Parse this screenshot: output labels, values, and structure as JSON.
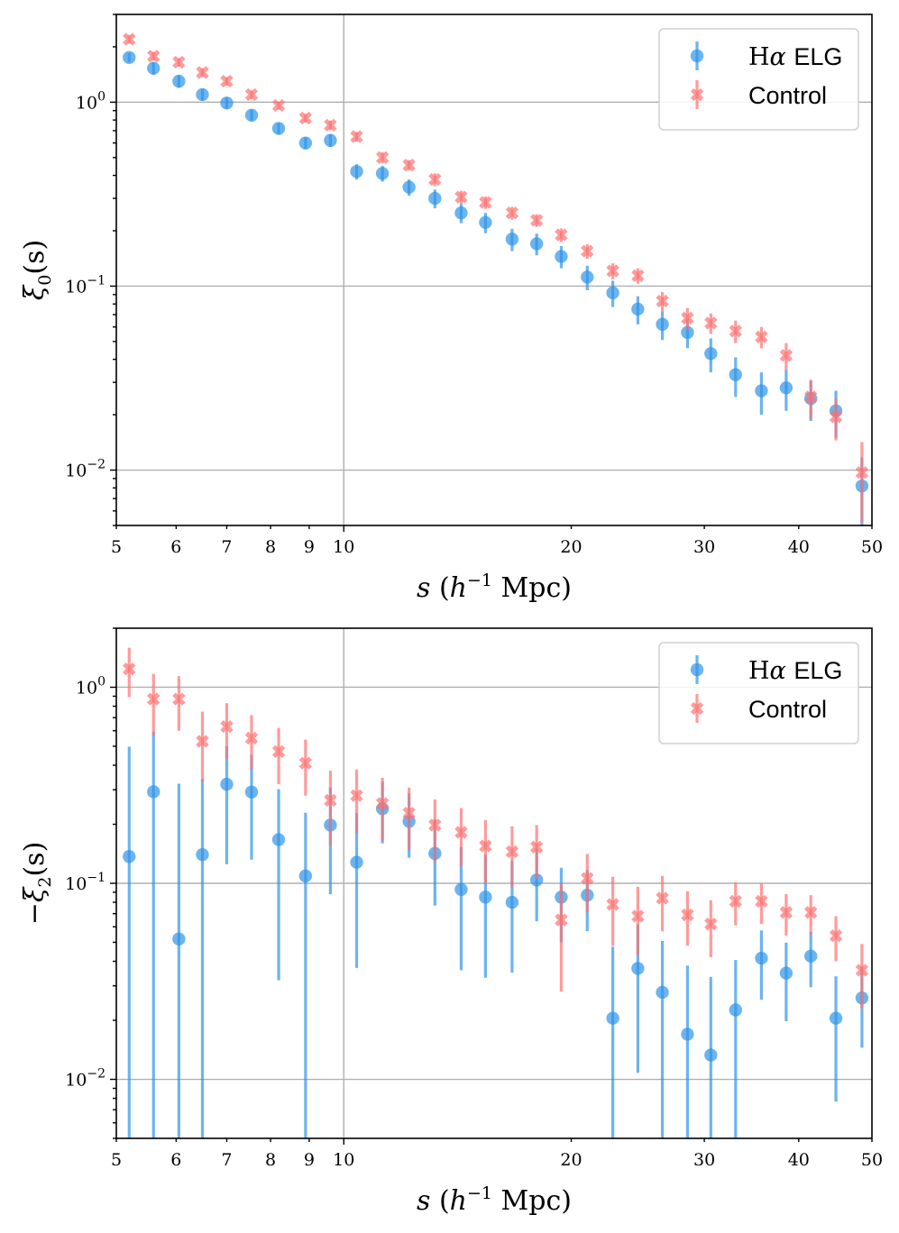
{
  "chart_data": [
    {
      "type": "scatter",
      "xscale": "log",
      "yscale": "log",
      "xlim": [
        5,
        50
      ],
      "ylim": [
        0.005,
        3.0
      ],
      "xticks": [
        5,
        6,
        7,
        8,
        9,
        10,
        20,
        30,
        40,
        50
      ],
      "xtick_labels": [
        "5",
        "6",
        "7",
        "8",
        "9",
        "10",
        "20",
        "30",
        "40",
        "50"
      ],
      "ytick_labels": [
        {
          "value": 1.0,
          "base": "10",
          "exp": "0"
        },
        {
          "value": 0.1,
          "base": "10",
          "exp": "−1"
        },
        {
          "value": 0.01,
          "base": "10",
          "exp": "−2"
        }
      ],
      "xlabel": {
        "var": "s",
        "open": "(",
        "h": "h",
        "exp": "−1",
        "unit": "Mpc",
        "close": ")"
      },
      "ylabel": {
        "sym": "ξ",
        "sub": "0",
        "arg": "(s)"
      },
      "grid": "major",
      "legend": "top-right",
      "series": [
        {
          "name": "ELG",
          "name_prefix": "Hα",
          "marker": "circle",
          "color": "#2e94e8",
          "x": [
            5.2,
            5.6,
            6.05,
            6.5,
            7.0,
            7.55,
            8.2,
            8.9,
            9.6,
            10.4,
            11.25,
            12.2,
            13.2,
            14.3,
            15.4,
            16.7,
            18.0,
            19.4,
            21.0,
            22.7,
            24.5,
            26.4,
            28.5,
            30.6,
            33.0,
            35.7,
            38.5,
            41.5,
            44.8,
            48.5
          ],
          "y": [
            1.75,
            1.53,
            1.3,
            1.1,
            0.99,
            0.85,
            0.72,
            0.6,
            0.62,
            0.42,
            0.41,
            0.345,
            0.3,
            0.25,
            0.222,
            0.18,
            0.17,
            0.145,
            0.112,
            0.092,
            0.075,
            0.062,
            0.056,
            0.043,
            0.033,
            0.027,
            0.028,
            0.0245,
            0.021,
            0.0082
          ],
          "yerr_lo": [
            0.1,
            0.12,
            0.1,
            0.08,
            0.07,
            0.06,
            0.05,
            0.045,
            0.05,
            0.04,
            0.04,
            0.035,
            0.035,
            0.03,
            0.028,
            0.025,
            0.023,
            0.02,
            0.017,
            0.015,
            0.013,
            0.011,
            0.01,
            0.009,
            0.008,
            0.007,
            0.007,
            0.006,
            0.006,
            0.0035
          ],
          "yerr_hi": [
            0.1,
            0.12,
            0.1,
            0.08,
            0.07,
            0.06,
            0.05,
            0.045,
            0.05,
            0.04,
            0.04,
            0.035,
            0.035,
            0.03,
            0.028,
            0.025,
            0.023,
            0.02,
            0.017,
            0.015,
            0.013,
            0.011,
            0.01,
            0.009,
            0.008,
            0.007,
            0.007,
            0.006,
            0.006,
            0.0035
          ]
        },
        {
          "name": "Control",
          "marker": "x",
          "color": "#ff7070",
          "x": [
            5.2,
            5.6,
            6.05,
            6.5,
            7.0,
            7.55,
            8.2,
            8.9,
            9.6,
            10.4,
            11.25,
            12.2,
            13.2,
            14.3,
            15.4,
            16.7,
            18.0,
            19.4,
            21.0,
            22.7,
            24.5,
            26.4,
            28.5,
            30.6,
            33.0,
            35.7,
            38.5,
            41.5,
            44.8,
            48.5
          ],
          "y": [
            2.2,
            1.78,
            1.65,
            1.45,
            1.3,
            1.1,
            0.96,
            0.82,
            0.75,
            0.65,
            0.5,
            0.455,
            0.38,
            0.305,
            0.285,
            0.25,
            0.228,
            0.19,
            0.155,
            0.121,
            0.114,
            0.083,
            0.067,
            0.063,
            0.057,
            0.053,
            0.042,
            0.025,
            0.0195,
            0.0097
          ],
          "yerr_lo": [
            0.12,
            0.1,
            0.09,
            0.08,
            0.07,
            0.06,
            0.05,
            0.045,
            0.045,
            0.04,
            0.035,
            0.03,
            0.03,
            0.025,
            0.022,
            0.02,
            0.018,
            0.016,
            0.014,
            0.012,
            0.011,
            0.01,
            0.009,
            0.008,
            0.008,
            0.007,
            0.007,
            0.006,
            0.005,
            0.0045
          ],
          "yerr_hi": [
            0.12,
            0.1,
            0.09,
            0.08,
            0.07,
            0.06,
            0.05,
            0.045,
            0.045,
            0.04,
            0.035,
            0.03,
            0.03,
            0.025,
            0.022,
            0.02,
            0.018,
            0.016,
            0.014,
            0.012,
            0.011,
            0.01,
            0.009,
            0.008,
            0.008,
            0.007,
            0.007,
            0.006,
            0.005,
            0.0045
          ]
        }
      ]
    },
    {
      "type": "scatter",
      "xscale": "log",
      "yscale": "log",
      "xlim": [
        5,
        50
      ],
      "ylim": [
        0.005,
        2.0
      ],
      "xticks": [
        5,
        6,
        7,
        8,
        9,
        10,
        20,
        30,
        40,
        50
      ],
      "xtick_labels": [
        "5",
        "6",
        "7",
        "8",
        "9",
        "10",
        "20",
        "30",
        "40",
        "50"
      ],
      "ytick_labels": [
        {
          "value": 1.0,
          "base": "10",
          "exp": "0"
        },
        {
          "value": 0.1,
          "base": "10",
          "exp": "−1"
        },
        {
          "value": 0.01,
          "base": "10",
          "exp": "−2"
        }
      ],
      "xlabel": {
        "var": "s",
        "open": "(",
        "h": "h",
        "exp": "−1",
        "unit": "Mpc",
        "close": ")"
      },
      "ylabel": {
        "sym": "−ξ",
        "sub": "2",
        "arg": "(s)"
      },
      "grid": "major",
      "legend": "top-right",
      "series": [
        {
          "name": "ELG",
          "name_prefix": "Hα",
          "marker": "circle",
          "color": "#2e94e8",
          "x": [
            5.2,
            5.6,
            6.05,
            6.5,
            7.0,
            7.55,
            8.2,
            8.9,
            9.6,
            10.4,
            11.25,
            12.2,
            13.2,
            14.3,
            15.4,
            16.7,
            18.0,
            19.4,
            21.0,
            22.7,
            24.5,
            26.4,
            28.5,
            30.6,
            33.0,
            35.7,
            38.5,
            41.5,
            44.8,
            48.5
          ],
          "y": [
            0.137,
            0.293,
            0.052,
            0.14,
            0.32,
            0.292,
            0.167,
            0.109,
            0.198,
            0.128,
            0.24,
            0.207,
            0.142,
            0.093,
            0.085,
            0.08,
            0.104,
            0.085,
            0.087,
            0.0205,
            0.0368,
            0.0278,
            0.017,
            0.0133,
            0.0226,
            0.0415,
            0.0348,
            0.0425,
            0.0205,
            0.026
          ],
          "yerr_lo": [
            0.135,
            0.29,
            0.05,
            0.138,
            0.195,
            0.16,
            0.135,
            0.105,
            0.11,
            0.091,
            0.08,
            0.072,
            0.065,
            0.057,
            0.052,
            0.045,
            0.04,
            0.035,
            0.03,
            0.02,
            0.026,
            0.027,
            0.0168,
            0.0132,
            0.0225,
            0.016,
            0.015,
            0.013,
            0.0128,
            0.0115
          ],
          "yerr_hi": [
            0.36,
            0.3,
            0.27,
            0.2,
            0.18,
            0.16,
            0.135,
            0.12,
            0.11,
            0.1,
            0.09,
            0.08,
            0.07,
            0.06,
            0.055,
            0.05,
            0.045,
            0.035,
            0.03,
            0.027,
            0.025,
            0.023,
            0.021,
            0.02,
            0.018,
            0.016,
            0.015,
            0.014,
            0.013,
            0.0115
          ]
        },
        {
          "name": "Control",
          "marker": "x",
          "color": "#ff7070",
          "x": [
            5.2,
            5.6,
            6.05,
            6.5,
            7.0,
            7.55,
            8.2,
            8.9,
            9.6,
            10.4,
            11.25,
            12.2,
            13.2,
            14.3,
            15.4,
            16.7,
            18.0,
            19.4,
            21.0,
            22.7,
            24.5,
            26.4,
            28.5,
            30.6,
            33.0,
            35.7,
            38.5,
            41.5,
            44.8,
            48.5
          ],
          "y": [
            1.24,
            0.87,
            0.87,
            0.53,
            0.63,
            0.55,
            0.47,
            0.41,
            0.265,
            0.28,
            0.255,
            0.228,
            0.198,
            0.182,
            0.155,
            0.145,
            0.153,
            0.065,
            0.106,
            0.078,
            0.068,
            0.084,
            0.069,
            0.062,
            0.081,
            0.081,
            0.071,
            0.071,
            0.054,
            0.036
          ],
          "yerr_lo": [
            0.35,
            0.3,
            0.27,
            0.2,
            0.2,
            0.17,
            0.15,
            0.13,
            0.11,
            0.1,
            0.09,
            0.08,
            0.07,
            0.06,
            0.055,
            0.05,
            0.048,
            0.037,
            0.035,
            0.03,
            0.025,
            0.027,
            0.021,
            0.02,
            0.02,
            0.019,
            0.017,
            0.016,
            0.014,
            0.013
          ],
          "yerr_hi": [
            0.35,
            0.3,
            0.27,
            0.22,
            0.2,
            0.17,
            0.15,
            0.13,
            0.11,
            0.1,
            0.09,
            0.08,
            0.07,
            0.06,
            0.055,
            0.05,
            0.045,
            0.035,
            0.035,
            0.03,
            0.028,
            0.025,
            0.022,
            0.02,
            0.02,
            0.019,
            0.017,
            0.016,
            0.014,
            0.013
          ]
        }
      ]
    }
  ]
}
